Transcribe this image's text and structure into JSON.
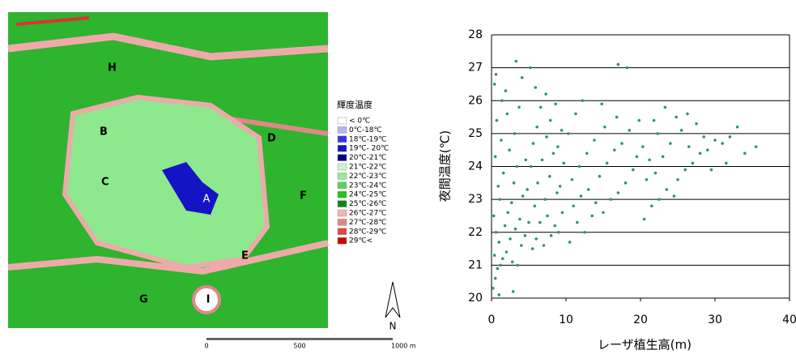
{
  "map": {
    "legend_title": "輝度温度",
    "legend": [
      {
        "label": "< 0℃",
        "color": "#ffffff"
      },
      {
        "label": "0℃-18℃",
        "color": "#b4b4f0"
      },
      {
        "label": "18℃-19℃",
        "color": "#3434e4"
      },
      {
        "label": "19℃- 20℃",
        "color": "#1414c4"
      },
      {
        "label": "20℃-21℃",
        "color": "#000080"
      },
      {
        "label": "21℃-22℃",
        "color": "#ccf4cc"
      },
      {
        "label": "22℃-23℃",
        "color": "#94ec94"
      },
      {
        "label": "23℃-24℃",
        "color": "#54d854"
      },
      {
        "label": "24℃-25℃",
        "color": "#22c422"
      },
      {
        "label": "25℃-26℃",
        "color": "#128212"
      },
      {
        "label": "26℃-27℃",
        "color": "#f2b4b4"
      },
      {
        "label": "27℃-28℃",
        "color": "#e48484"
      },
      {
        "label": "28℃-29℃",
        "color": "#e44444"
      },
      {
        "label": "29℃<",
        "color": "#d00000"
      }
    ],
    "labels": [
      "A",
      "B",
      "C",
      "D",
      "E",
      "F",
      "G",
      "H",
      "I"
    ],
    "scale": [
      "0",
      "500",
      "1000 m"
    ],
    "north": "N"
  },
  "chart_data": {
    "type": "scatter",
    "color": "#2e9470",
    "x_label": "レーザ植生高(m)",
    "y_label": "夜間温度(℃)",
    "xlim": [
      0,
      40
    ],
    "ylim": [
      20,
      28
    ],
    "xticks": [
      0,
      10,
      20,
      30,
      40
    ],
    "yticks": [
      20,
      21,
      22,
      23,
      24,
      25,
      26,
      27,
      28
    ],
    "grid": true,
    "x": [
      0.2,
      0.5,
      0.8,
      1.2,
      0.4,
      1.5,
      2.0,
      2.8,
      3.5,
      1.0,
      2.5,
      4.0,
      0.6,
      1.8,
      3.2,
      4.5,
      0.3,
      2.2,
      3.8,
      5.0,
      1.1,
      2.7,
      4.2,
      0.9,
      3.0,
      4.8,
      1.6,
      3.4,
      0.5,
      2.4,
      4.6,
      1.3,
      3.1,
      0.7,
      2.1,
      1.4,
      3.7,
      0.4,
      1.9,
      4.1,
      3.3,
      0.6,
      1.0,
      2.9,
      5.5,
      6.0,
      7.0,
      8.0,
      9.0,
      6.5,
      7.5,
      8.5,
      9.5,
      5.8,
      7.2,
      8.8,
      6.2,
      7.8,
      9.2,
      5.3,
      6.8,
      8.3,
      9.7,
      5.6,
      7.4,
      8.9,
      6.1,
      7.9,
      9.4,
      6.6,
      8.6,
      5.9,
      5.2,
      7.3,
      10.5,
      11.5,
      12.5,
      13.5,
      11.0,
      14.0,
      15.0,
      12.0,
      13.0,
      16.0,
      17.0,
      10.8,
      14.5,
      18.0,
      11.8,
      15.5,
      19.0,
      12.8,
      16.5,
      19.5,
      13.8,
      17.5,
      10.3,
      15.2,
      18.5,
      11.3,
      16.8,
      12.2,
      14.8,
      17.0,
      18.2,
      19.8,
      20.5,
      21.5,
      22.5,
      23.5,
      24.5,
      20.8,
      22.0,
      25.0,
      26.0,
      21.2,
      23.0,
      27.0,
      28.0,
      20.3,
      24.0,
      26.5,
      29.0,
      22.3,
      25.5,
      28.5,
      30.0,
      21.8,
      24.8,
      27.5,
      31.0,
      23.3,
      26.3,
      32.0,
      33.0,
      34.0,
      35.5,
      29.5,
      31.5
    ],
    "values": [
      20.3,
      20.6,
      20.9,
      21.0,
      21.3,
      21.2,
      21.4,
      21.1,
      21.0,
      21.7,
      21.8,
      21.6,
      22.0,
      22.2,
      22.1,
      21.9,
      22.5,
      22.6,
      22.4,
      22.3,
      23.0,
      22.9,
      23.1,
      23.4,
      23.5,
      23.3,
      23.8,
      24.0,
      24.3,
      24.5,
      24.2,
      24.8,
      25.0,
      25.4,
      25.6,
      26.0,
      25.8,
      26.5,
      26.3,
      26.7,
      27.2,
      26.8,
      20.1,
      20.2,
      21.5,
      21.8,
      21.6,
      21.9,
      22.0,
      22.3,
      22.5,
      22.2,
      22.6,
      22.8,
      23.0,
      23.2,
      23.5,
      23.7,
      23.4,
      24.0,
      24.2,
      24.4,
      24.1,
      24.7,
      24.9,
      24.6,
      25.2,
      25.4,
      25.1,
      25.8,
      25.9,
      26.4,
      27.0,
      26.2,
      21.7,
      22.3,
      22.0,
      22.5,
      22.8,
      22.9,
      22.6,
      23.1,
      23.3,
      23.0,
      23.2,
      23.6,
      23.7,
      23.5,
      24.0,
      24.1,
      23.9,
      24.4,
      24.5,
      24.3,
      24.8,
      24.7,
      25.0,
      25.2,
      25.1,
      25.6,
      25.5,
      26.0,
      25.9,
      27.1,
      27.0,
      25.4,
      22.4,
      22.8,
      23.0,
      23.3,
      23.1,
      23.6,
      23.8,
      23.6,
      23.9,
      24.2,
      24.3,
      24.1,
      24.4,
      24.6,
      24.7,
      24.6,
      24.5,
      25.0,
      25.1,
      24.9,
      24.8,
      25.4,
      25.5,
      25.3,
      24.7,
      25.8,
      25.6,
      24.9,
      25.2,
      24.4,
      24.6,
      23.9,
      24.1
    ]
  }
}
